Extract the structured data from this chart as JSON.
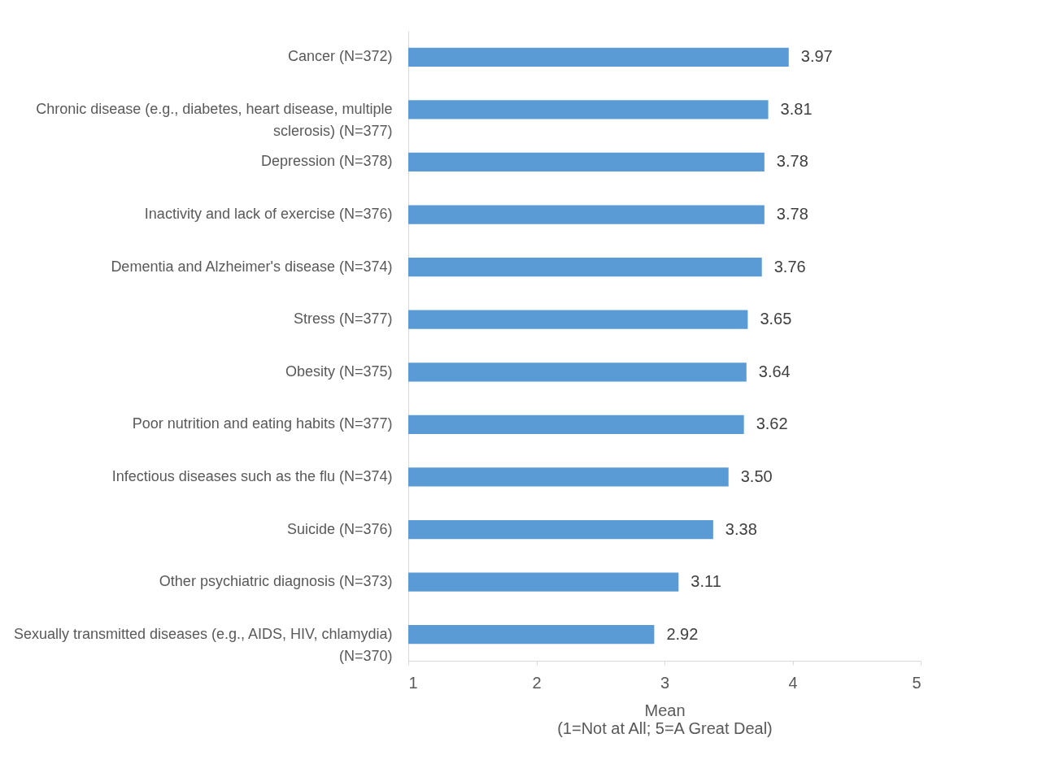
{
  "chart_data": {
    "type": "bar",
    "orientation": "horizontal",
    "categories": [
      "Cancer (N=372)",
      "Chronic disease (e.g., diabetes, heart disease, multiple sclerosis) (N=377)",
      "Depression (N=378)",
      "Inactivity and lack of exercise (N=376)",
      "Dementia and Alzheimer's disease (N=374)",
      "Stress (N=377)",
      "Obesity (N=375)",
      "Poor nutrition and eating habits (N=377)",
      "Infectious diseases such as the flu (N=374)",
      "Suicide (N=376)",
      "Other psychiatric diagnosis (N=373)",
      "Sexually transmitted diseases (e.g., AIDS, HIV, chlamydia) (N=370)"
    ],
    "values": [
      3.97,
      3.81,
      3.78,
      3.78,
      3.76,
      3.65,
      3.64,
      3.62,
      3.5,
      3.38,
      3.11,
      2.92
    ],
    "value_labels": [
      "3.97",
      "3.81",
      "3.78",
      "3.78",
      "3.76",
      "3.65",
      "3.64",
      "3.62",
      "3.50",
      "3.38",
      "3.11",
      "2.92"
    ],
    "color": "#5b9bd5",
    "xlim": [
      1,
      5
    ],
    "xticks": [
      1,
      2,
      3,
      4,
      5
    ],
    "xlabel": "Mean\n(1=Not at All; 5=A Great Deal)",
    "grid": false
  }
}
